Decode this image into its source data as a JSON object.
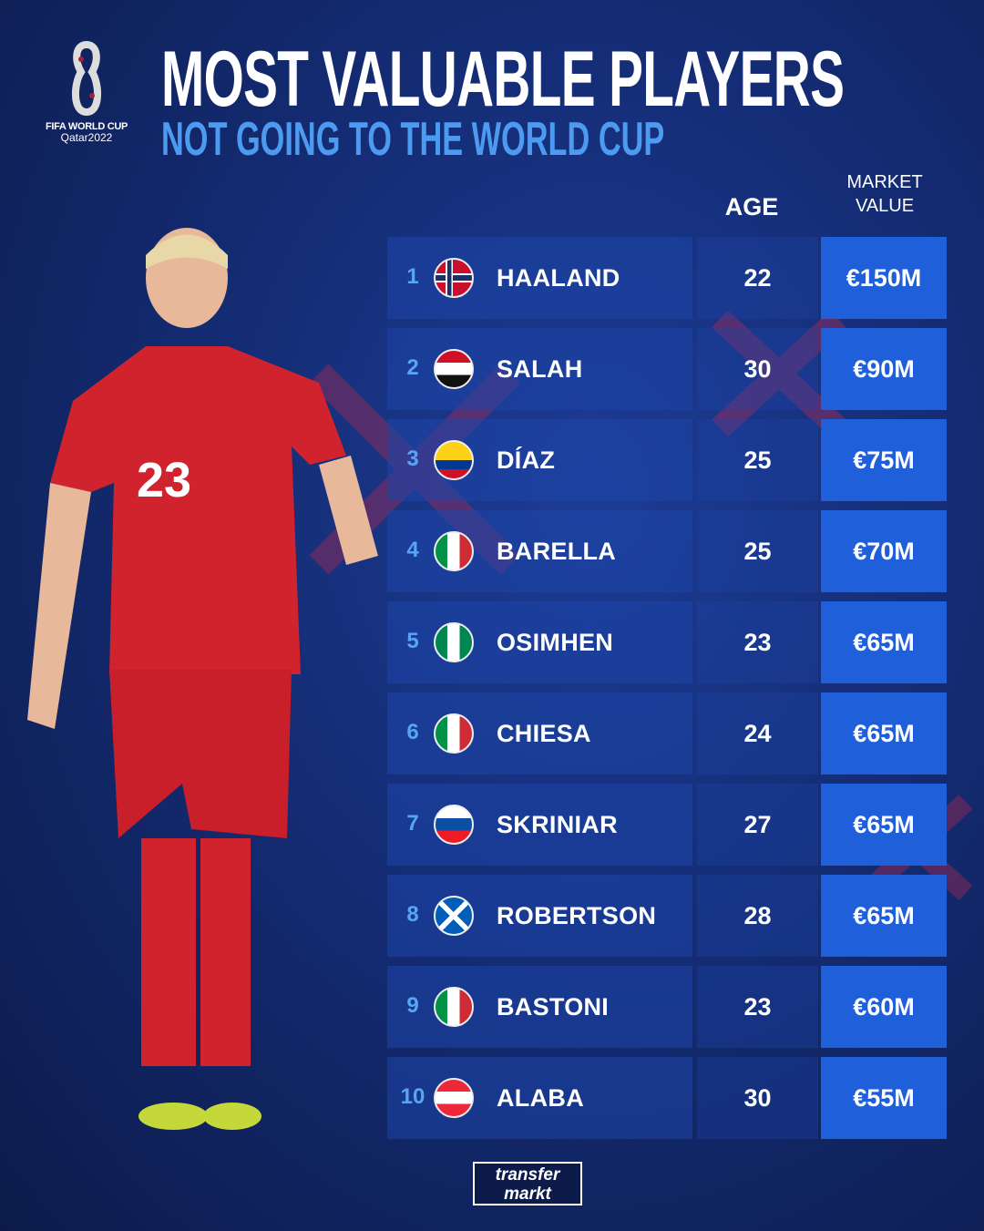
{
  "logo": {
    "line1": "FIFA WORLD CUP",
    "line2": "Qatar2022"
  },
  "header": {
    "title": "MOST VALUABLE PLAYERS",
    "subtitle": "NOT GOING TO THE WORLD CUP"
  },
  "columns": {
    "age": "AGE",
    "market_value_line1": "MARKET",
    "market_value_line2": "VALUE"
  },
  "colors": {
    "background": "#142c74",
    "row": "#1e46aa",
    "value_cell": "#1f5fd9",
    "subtitle": "#4d9bf0"
  },
  "players": [
    {
      "rank": "1",
      "flag": "norway-flag",
      "name": "HAALAND",
      "age": "22",
      "value": "€150M"
    },
    {
      "rank": "2",
      "flag": "egypt-flag",
      "name": "SALAH",
      "age": "30",
      "value": "€90M"
    },
    {
      "rank": "3",
      "flag": "colombia-flag",
      "name": "DÍAZ",
      "age": "25",
      "value": "€75M"
    },
    {
      "rank": "4",
      "flag": "italy-flag",
      "name": "BARELLA",
      "age": "25",
      "value": "€70M"
    },
    {
      "rank": "5",
      "flag": "nigeria-flag",
      "name": "OSIMHEN",
      "age": "23",
      "value": "€65M"
    },
    {
      "rank": "6",
      "flag": "italy-flag",
      "name": "CHIESA",
      "age": "24",
      "value": "€65M"
    },
    {
      "rank": "7",
      "flag": "slovakia-flag",
      "name": "SKRINIAR",
      "age": "27",
      "value": "€65M"
    },
    {
      "rank": "8",
      "flag": "scotland-flag",
      "name": "ROBERTSON",
      "age": "28",
      "value": "€65M"
    },
    {
      "rank": "9",
      "flag": "italy-flag",
      "name": "BASTONI",
      "age": "23",
      "value": "€60M"
    },
    {
      "rank": "10",
      "flag": "austria-flag",
      "name": "ALABA",
      "age": "30",
      "value": "€55M"
    }
  ],
  "footer": {
    "brand_line1": "transfer",
    "brand_line2": "markt"
  },
  "player_photo": {
    "shirt_number": "23"
  }
}
